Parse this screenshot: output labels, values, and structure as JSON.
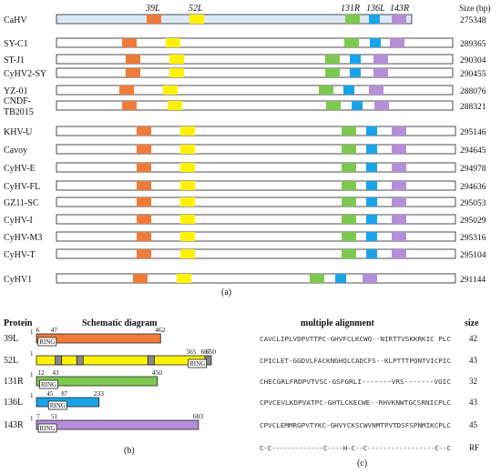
{
  "gene_labels": [
    {
      "text": "39L",
      "gene": "39L"
    },
    {
      "text": "52L",
      "gene": "52L"
    },
    {
      "text": "131R",
      "gene": "131R"
    },
    {
      "text": "136L",
      "gene": "136L"
    },
    {
      "text": "143R",
      "gene": "143R"
    }
  ],
  "size_header": "Size (bp)",
  "colors": {
    "39L": "#ee7b3a",
    "52L": "#fff200",
    "131R": "#7ec850",
    "136L": "#1aa3e8",
    "143R": "#b48fd8",
    "CaHV_bar": "#dde8f5",
    "bar": "#ffffff",
    "ring_box": "#ffffff",
    "grey_box": "#888888"
  },
  "genomes": [
    {
      "name": "CaHV",
      "size": "275348",
      "fill": "CaHV_bar"
    },
    {
      "name": "SY-C1",
      "size": "289365"
    },
    {
      "name": "ST-J1",
      "size": "290304"
    },
    {
      "name": "CyHV2-SY",
      "size": "290455"
    },
    {
      "name": "YZ-01",
      "size": "288076"
    },
    {
      "name": "CNDF-TB2015",
      "size": "288321"
    },
    {
      "name": "KHV-U",
      "size": "295146"
    },
    {
      "name": "Cavoy",
      "size": "294645"
    },
    {
      "name": "CyHV-E",
      "size": "294978"
    },
    {
      "name": "CyHV-FL",
      "size": "294636"
    },
    {
      "name": "GZ11-SC",
      "size": "295053"
    },
    {
      "name": "CyHV-I",
      "size": "295029"
    },
    {
      "name": "CyHV-M3",
      "size": "295316"
    },
    {
      "name": "CyHV-T",
      "size": "295104"
    },
    {
      "name": "CyHV1",
      "size": "291144"
    }
  ],
  "panel_a_label": "(a)",
  "panel_b": {
    "col_protein": "Protein",
    "col_schematic": "Schematic diagram",
    "label": "(b)",
    "proteins": [
      {
        "name": "39L",
        "gene": "39L",
        "start": "1",
        "length": 462,
        "length_label": "462",
        "ring": {
          "label": "RING",
          "from": 6,
          "to": 47,
          "from_label": "6",
          "to_label": "47"
        },
        "grey": []
      },
      {
        "name": "52L",
        "gene": "52L",
        "start": "1",
        "length": 650,
        "length_label": "650",
        "ring": {
          "label": "RING",
          "from": 565,
          "to": 607,
          "from_label": "565",
          "to_label": "607"
        },
        "grey": [
          70,
          150,
          415,
          627
        ]
      },
      {
        "name": "131R",
        "gene": "131R",
        "start": "1",
        "length": 450,
        "length_label": "450",
        "ring": {
          "label": "RING",
          "from": 12,
          "to": 43,
          "from_label": "12",
          "to_label": "43"
        },
        "grey": []
      },
      {
        "name": "136L",
        "gene": "136L",
        "start": "1",
        "length": 233,
        "length_label": "233",
        "ring": {
          "label": "RING",
          "from": 45,
          "to": 87,
          "from_label": "45",
          "to_label": "87"
        },
        "grey": []
      },
      {
        "name": "143R",
        "gene": "143R",
        "start": "1",
        "length": 603,
        "length_label": "603",
        "ring": {
          "label": "RING",
          "from": 7,
          "to": 51,
          "from_label": "7",
          "to_label": "51"
        },
        "grey": []
      }
    ]
  },
  "panel_c": {
    "title": "multiple alignment",
    "size_header": "size",
    "label": "(c)",
    "rows": [
      {
        "seq": "CAVCLIPLVDPVTTPC-GHVFCLKCWQ--NIRTTVSKKRKIC PLC",
        "size": "42"
      },
      {
        "seq": "CPICLET-GGDVLFACKNGHQLCADCFS--KLPTTTPQNTVICPIC",
        "size": "43"
      },
      {
        "seq": "CHECGRLFRDPVTVSC-GSFGRLI-------VRS-------VGIC",
        "size": "32"
      },
      {
        "seq": "CPVCEVLKDPVATPC-GHTLCKECWE--RHVKNWTGCSRNICPLC",
        "size": "43"
      },
      {
        "seq": "CPVCLEMMRGPVTYKC-GHVYCKSCWVNMTPVTDSFSPNMIKCPLC",
        "size": "45"
      }
    ],
    "consensus": {
      "seq": "C-C-------------C----H-C--C-----------------C--C",
      "size": "RF"
    }
  }
}
